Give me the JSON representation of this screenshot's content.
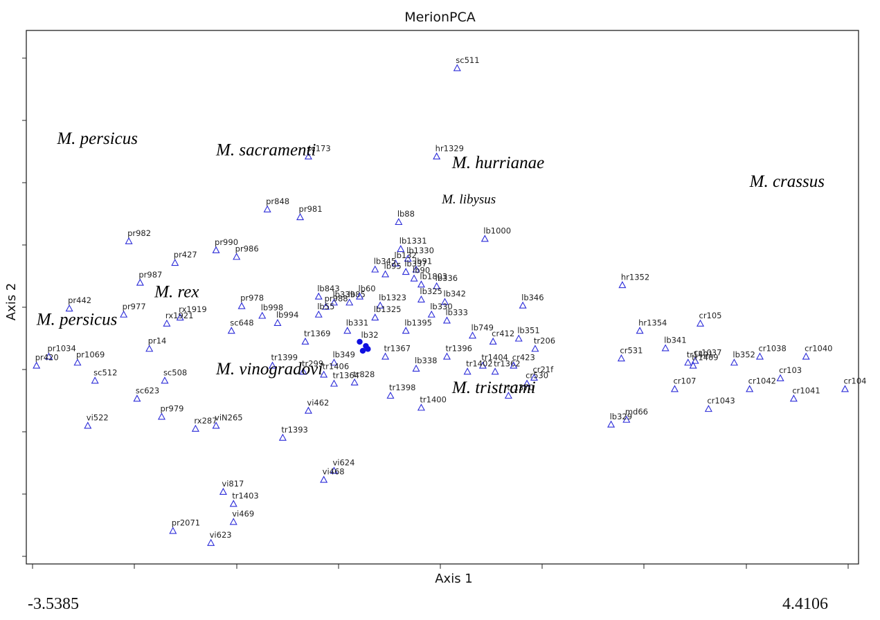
{
  "chart_data": {
    "type": "scatter",
    "title": "MerionPCA",
    "xlabel": "Axis 1",
    "ylabel": "Axis 2",
    "x_min_label": "-3.5385",
    "x_max_label": "4.4106",
    "xlim": [
      -3.5385,
      4.4106
    ],
    "ylim": [
      -4.17,
      4.12
    ],
    "marker": "triangle",
    "marker_color": "#2a2ad8",
    "centroid_color": "#1010e0",
    "grid": false,
    "species_labels": [
      {
        "text": "M. persicus",
        "x": -3.3,
        "y": 2.69
      },
      {
        "text": "M. sacramenti",
        "x": -1.75,
        "y": 2.5
      },
      {
        "text": "M. hurrianae",
        "x": 0.55,
        "y": 2.29
      },
      {
        "text": "M. crassus",
        "x": 3.45,
        "y": 1.98
      },
      {
        "text": "M. libysus",
        "x": 0.45,
        "y": 1.7
      },
      {
        "text": "M. rex",
        "x": -2.35,
        "y": 0.14
      },
      {
        "text": "M. persicus",
        "x": -3.5,
        "y": -0.32
      },
      {
        "text": "M. vinogradovi",
        "x": -1.75,
        "y": -1.14
      },
      {
        "text": "M. tristrami",
        "x": 0.55,
        "y": -1.45
      }
    ],
    "points": [
      {
        "label": "sc511",
        "x": 0.6,
        "y": 3.95
      },
      {
        "label": "hr1329",
        "x": 0.4,
        "y": 2.48
      },
      {
        "label": "sc173",
        "x": -0.85,
        "y": 2.48
      },
      {
        "label": "pr848",
        "x": -1.25,
        "y": 1.6
      },
      {
        "label": "pr981",
        "x": -0.93,
        "y": 1.47
      },
      {
        "label": "lb88",
        "x": 0.03,
        "y": 1.39
      },
      {
        "label": "lb1000",
        "x": 0.87,
        "y": 1.11
      },
      {
        "label": "pr982",
        "x": -2.6,
        "y": 1.07
      },
      {
        "label": "pr990",
        "x": -1.75,
        "y": 0.92
      },
      {
        "label": "pr986",
        "x": -1.55,
        "y": 0.81
      },
      {
        "label": "pr427",
        "x": -2.15,
        "y": 0.71
      },
      {
        "label": "lb1331",
        "x": 0.05,
        "y": 0.94
      },
      {
        "label": "lb1330",
        "x": 0.12,
        "y": 0.78
      },
      {
        "label": "lb132",
        "x": 0.0,
        "y": 0.7
      },
      {
        "label": "lb345",
        "x": -0.2,
        "y": 0.6
      },
      {
        "label": "lb95",
        "x": -0.1,
        "y": 0.52
      },
      {
        "label": "lb337",
        "x": 0.1,
        "y": 0.56
      },
      {
        "label": "lb91",
        "x": 0.2,
        "y": 0.6
      },
      {
        "label": "lb90",
        "x": 0.18,
        "y": 0.45
      },
      {
        "label": "lb1803",
        "x": 0.25,
        "y": 0.35
      },
      {
        "label": "lb336",
        "x": 0.4,
        "y": 0.32
      },
      {
        "label": "pr987",
        "x": -2.49,
        "y": 0.38
      },
      {
        "label": "lb843",
        "x": -0.75,
        "y": 0.15
      },
      {
        "label": "lb339",
        "x": -0.6,
        "y": 0.05
      },
      {
        "label": "pr988",
        "x": -0.68,
        "y": -0.02
      },
      {
        "label": "lb85",
        "x": -0.45,
        "y": 0.05
      },
      {
        "label": "lb60",
        "x": -0.35,
        "y": 0.15
      },
      {
        "label": "lb325",
        "x": 0.25,
        "y": 0.1
      },
      {
        "label": "lb342",
        "x": 0.48,
        "y": 0.06
      },
      {
        "label": "lb346",
        "x": 1.24,
        "y": 0.0
      },
      {
        "label": "hr1352",
        "x": 2.21,
        "y": 0.34
      },
      {
        "label": "pr442",
        "x": -3.18,
        "y": -0.05
      },
      {
        "label": "pr977",
        "x": -2.65,
        "y": -0.15
      },
      {
        "label": "rx1919",
        "x": -2.1,
        "y": -0.2
      },
      {
        "label": "rx1921",
        "x": -2.23,
        "y": -0.3
      },
      {
        "label": "pr978",
        "x": -1.5,
        "y": -0.01
      },
      {
        "label": "lb998",
        "x": -1.3,
        "y": -0.17
      },
      {
        "label": "lb994",
        "x": -1.15,
        "y": -0.29
      },
      {
        "label": "sc648",
        "x": -1.6,
        "y": -0.42
      },
      {
        "label": "lb1323",
        "x": -0.15,
        "y": 0.0
      },
      {
        "label": "lb1325",
        "x": -0.2,
        "y": -0.2
      },
      {
        "label": "lb55",
        "x": -0.75,
        "y": -0.15
      },
      {
        "label": "lb331",
        "x": -0.47,
        "y": -0.42
      },
      {
        "label": "lb330",
        "x": 0.35,
        "y": -0.15
      },
      {
        "label": "lb333",
        "x": 0.5,
        "y": -0.25
      },
      {
        "label": "lb749",
        "x": 0.75,
        "y": -0.5
      },
      {
        "label": "cr412",
        "x": 0.95,
        "y": -0.6
      },
      {
        "label": "lb351",
        "x": 1.2,
        "y": -0.55
      },
      {
        "label": "tr206",
        "x": 1.36,
        "y": -0.72
      },
      {
        "label": "lb1395",
        "x": 0.1,
        "y": -0.42
      },
      {
        "label": "hr1354",
        "x": 2.38,
        "y": -0.42
      },
      {
        "label": "cr105",
        "x": 2.97,
        "y": -0.3
      },
      {
        "label": "lb341",
        "x": 2.63,
        "y": -0.71
      },
      {
        "label": "cr531",
        "x": 2.2,
        "y": -0.88
      },
      {
        "label": "cr1037",
        "x": 2.92,
        "y": -0.92
      },
      {
        "label": "lb352",
        "x": 3.3,
        "y": -0.95
      },
      {
        "label": "cr1038",
        "x": 3.55,
        "y": -0.85
      },
      {
        "label": "cr1040",
        "x": 4.0,
        "y": -0.85
      },
      {
        "label": "tr1401",
        "x": 2.85,
        "y": -0.95
      },
      {
        "label": "tr1409",
        "x": 2.9,
        "y": -1.0
      },
      {
        "label": "cr107",
        "x": 2.72,
        "y": -1.39
      },
      {
        "label": "cr103",
        "x": 3.75,
        "y": -1.21
      },
      {
        "label": "cr1042",
        "x": 3.45,
        "y": -1.39
      },
      {
        "label": "cr104",
        "x": 4.38,
        "y": -1.39
      },
      {
        "label": "cr1043",
        "x": 3.05,
        "y": -1.72
      },
      {
        "label": "cr1041",
        "x": 3.88,
        "y": -1.55
      },
      {
        "label": "md66",
        "x": 2.25,
        "y": -1.9
      },
      {
        "label": "lb329",
        "x": 2.1,
        "y": -1.98
      },
      {
        "label": "pr14",
        "x": -2.4,
        "y": -0.72
      },
      {
        "label": "pr1034",
        "x": -3.38,
        "y": -0.85
      },
      {
        "label": "pr1069",
        "x": -3.1,
        "y": -0.95
      },
      {
        "label": "pr420",
        "x": -3.5,
        "y": -1.0
      },
      {
        "label": "tr1369",
        "x": -0.88,
        "y": -0.6
      },
      {
        "label": "tr1399",
        "x": -1.2,
        "y": -1.0
      },
      {
        "label": "tr299",
        "x": -0.9,
        "y": -1.1
      },
      {
        "label": "lb349",
        "x": -0.6,
        "y": -0.95
      },
      {
        "label": "tr1406",
        "x": -0.7,
        "y": -1.15
      },
      {
        "label": "tr1367",
        "x": -0.1,
        "y": -0.85
      },
      {
        "label": "tr1364",
        "x": -0.6,
        "y": -1.3
      },
      {
        "label": "tr828",
        "x": -0.4,
        "y": -1.28
      },
      {
        "label": "lb338",
        "x": 0.2,
        "y": -1.05
      },
      {
        "label": "tr1396",
        "x": 0.5,
        "y": -0.85
      },
      {
        "label": "tr1404",
        "x": 0.85,
        "y": -1.0
      },
      {
        "label": "tr1402",
        "x": 0.7,
        "y": -1.1
      },
      {
        "label": "tr1362",
        "x": 0.97,
        "y": -1.1
      },
      {
        "label": "cr423",
        "x": 1.15,
        "y": -1.0
      },
      {
        "label": "cr21f",
        "x": 1.35,
        "y": -1.2
      },
      {
        "label": "cr530",
        "x": 1.28,
        "y": -1.3
      },
      {
        "label": "tr1370",
        "x": 1.1,
        "y": -1.5
      },
      {
        "label": "tr1398",
        "x": -0.05,
        "y": -1.5
      },
      {
        "label": "tr1400",
        "x": 0.25,
        "y": -1.7
      },
      {
        "label": "sc508",
        "x": -2.25,
        "y": -1.25
      },
      {
        "label": "sc623",
        "x": -2.52,
        "y": -1.55
      },
      {
        "label": "sc512",
        "x": -2.93,
        "y": -1.25
      },
      {
        "label": "vi462",
        "x": -0.85,
        "y": -1.75
      },
      {
        "label": "pr979",
        "x": -2.28,
        "y": -1.85
      },
      {
        "label": "rx287",
        "x": -1.95,
        "y": -2.05
      },
      {
        "label": "viN265",
        "x": -1.75,
        "y": -2.0
      },
      {
        "label": "vi522",
        "x": -3.0,
        "y": -2.0
      },
      {
        "label": "tr1393",
        "x": -1.1,
        "y": -2.2
      },
      {
        "label": "vi624",
        "x": -0.6,
        "y": -2.75
      },
      {
        "label": "vi468",
        "x": -0.7,
        "y": -2.9
      },
      {
        "label": "vi817",
        "x": -1.68,
        "y": -3.1
      },
      {
        "label": "tr1403",
        "x": -1.58,
        "y": -3.3
      },
      {
        "label": "vi469",
        "x": -1.58,
        "y": -3.6
      },
      {
        "label": "pr2071",
        "x": -2.17,
        "y": -3.75
      },
      {
        "label": "vi623",
        "x": -1.8,
        "y": -3.95
      }
    ],
    "centroids": [
      {
        "label": "lb32",
        "x": -0.35,
        "y": -0.6
      },
      {
        "label": "",
        "x": -0.29,
        "y": -0.67
      },
      {
        "label": "",
        "x": -0.32,
        "y": -0.75
      },
      {
        "label": "",
        "x": -0.27,
        "y": -0.72
      }
    ]
  }
}
